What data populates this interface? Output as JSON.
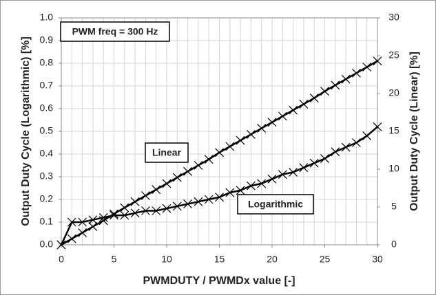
{
  "chart_data": {
    "type": "line",
    "xlabel": "PWMDUTY / PWMDx value [-]",
    "ylabel": "Output Duty Cycle (Logarithmic)  [%]",
    "y2label": "Output Duty Cycle  (Linear) [%]",
    "annotations": [
      "PWM freq = 300 Hz",
      "Linear",
      "Logarithmic"
    ],
    "x": [
      0,
      1,
      2,
      3,
      4,
      5,
      6,
      7,
      8,
      9,
      10,
      11,
      12,
      13,
      14,
      15,
      16,
      17,
      18,
      19,
      20,
      21,
      22,
      23,
      24,
      25,
      26,
      27,
      28,
      29,
      30
    ],
    "series": [
      {
        "name": "Linear",
        "color": "#000000",
        "axis": "y2",
        "values": [
          0,
          0.8,
          1.6,
          2.4,
          3.2,
          4.1,
          4.9,
          5.7,
          6.5,
          7.3,
          8.1,
          8.9,
          9.7,
          10.5,
          11.3,
          12.2,
          13,
          13.8,
          14.6,
          15.4,
          16.2,
          17,
          17.8,
          18.6,
          19.4,
          20.3,
          21.1,
          21.9,
          22.7,
          23.5,
          24.3
        ]
      },
      {
        "name": "Logarithmic",
        "color": "#000000",
        "values": [
          0,
          0.1,
          0.1,
          0.11,
          0.12,
          0.13,
          0.13,
          0.14,
          0.15,
          0.15,
          0.16,
          0.17,
          0.18,
          0.19,
          0.2,
          0.21,
          0.23,
          0.24,
          0.26,
          0.27,
          0.29,
          0.31,
          0.32,
          0.34,
          0.36,
          0.38,
          0.41,
          0.43,
          0.45,
          0.48,
          0.52
        ]
      }
    ],
    "xlim": [
      0,
      30
    ],
    "xticks": [
      0,
      5,
      10,
      15,
      20,
      25,
      30
    ],
    "ylim": [
      0,
      1
    ],
    "yticks": [
      {
        "value": 0,
        "label": "0.0"
      },
      0.1,
      0.2,
      0.3,
      0.4,
      0.5,
      0.6,
      0.7,
      0.8,
      0.9,
      {
        "value": 1,
        "label": "1.0"
      }
    ],
    "y2lim": [
      0,
      30
    ],
    "y2ticks": [
      0,
      5,
      10,
      15,
      20,
      25,
      30
    ],
    "grid": true
  }
}
